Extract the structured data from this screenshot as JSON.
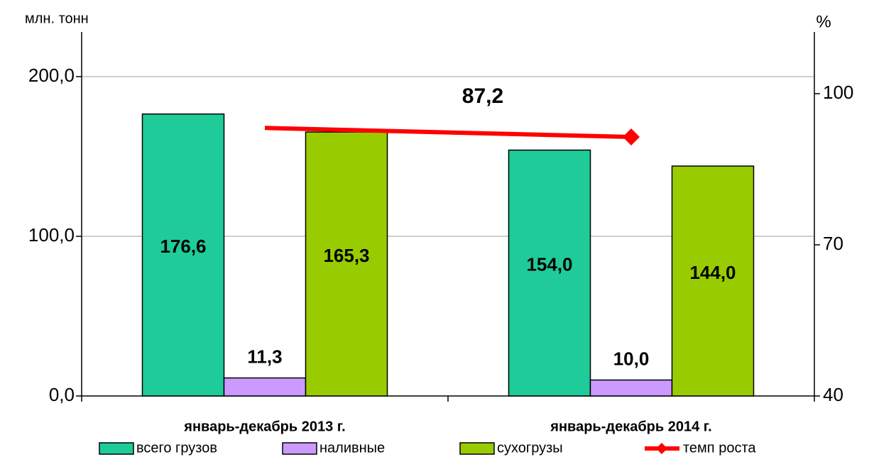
{
  "chart_data": {
    "type": "bar",
    "y_label": "млн. тонн",
    "y2_label": "%",
    "annotation": "87,2",
    "categories": [
      "январь-декабрь 2013 г.",
      "январь-декабрь 2014 г."
    ],
    "series": [
      {
        "name": "всего грузов",
        "color": "#1fcc99",
        "values": [
          176.6,
          154.0
        ],
        "value_labels": [
          "176,6",
          "154,0"
        ]
      },
      {
        "name": "наливные",
        "color": "#cc99ff",
        "values": [
          11.3,
          10.0
        ],
        "value_labels": [
          "11,3",
          "10,0"
        ]
      },
      {
        "name": "сухогрузы",
        "color": "#99cc00",
        "values": [
          165.3,
          144.0
        ],
        "value_labels": [
          "165,3",
          "144,0"
        ]
      },
      {
        "name": "темп роста",
        "color": "#ff0000",
        "type": "line",
        "axis": "y2",
        "values": [
          93.2,
          91.4
        ]
      }
    ],
    "ylim": [
      0,
      228
    ],
    "yticks": [
      {
        "value": 0,
        "label": "0,0"
      },
      {
        "value": 100,
        "label": "100,0"
      },
      {
        "value": 200,
        "label": "200,0"
      }
    ],
    "y2lim": [
      40,
      112.25
    ],
    "y2ticks": [
      40,
      70,
      100
    ],
    "grid": true
  }
}
